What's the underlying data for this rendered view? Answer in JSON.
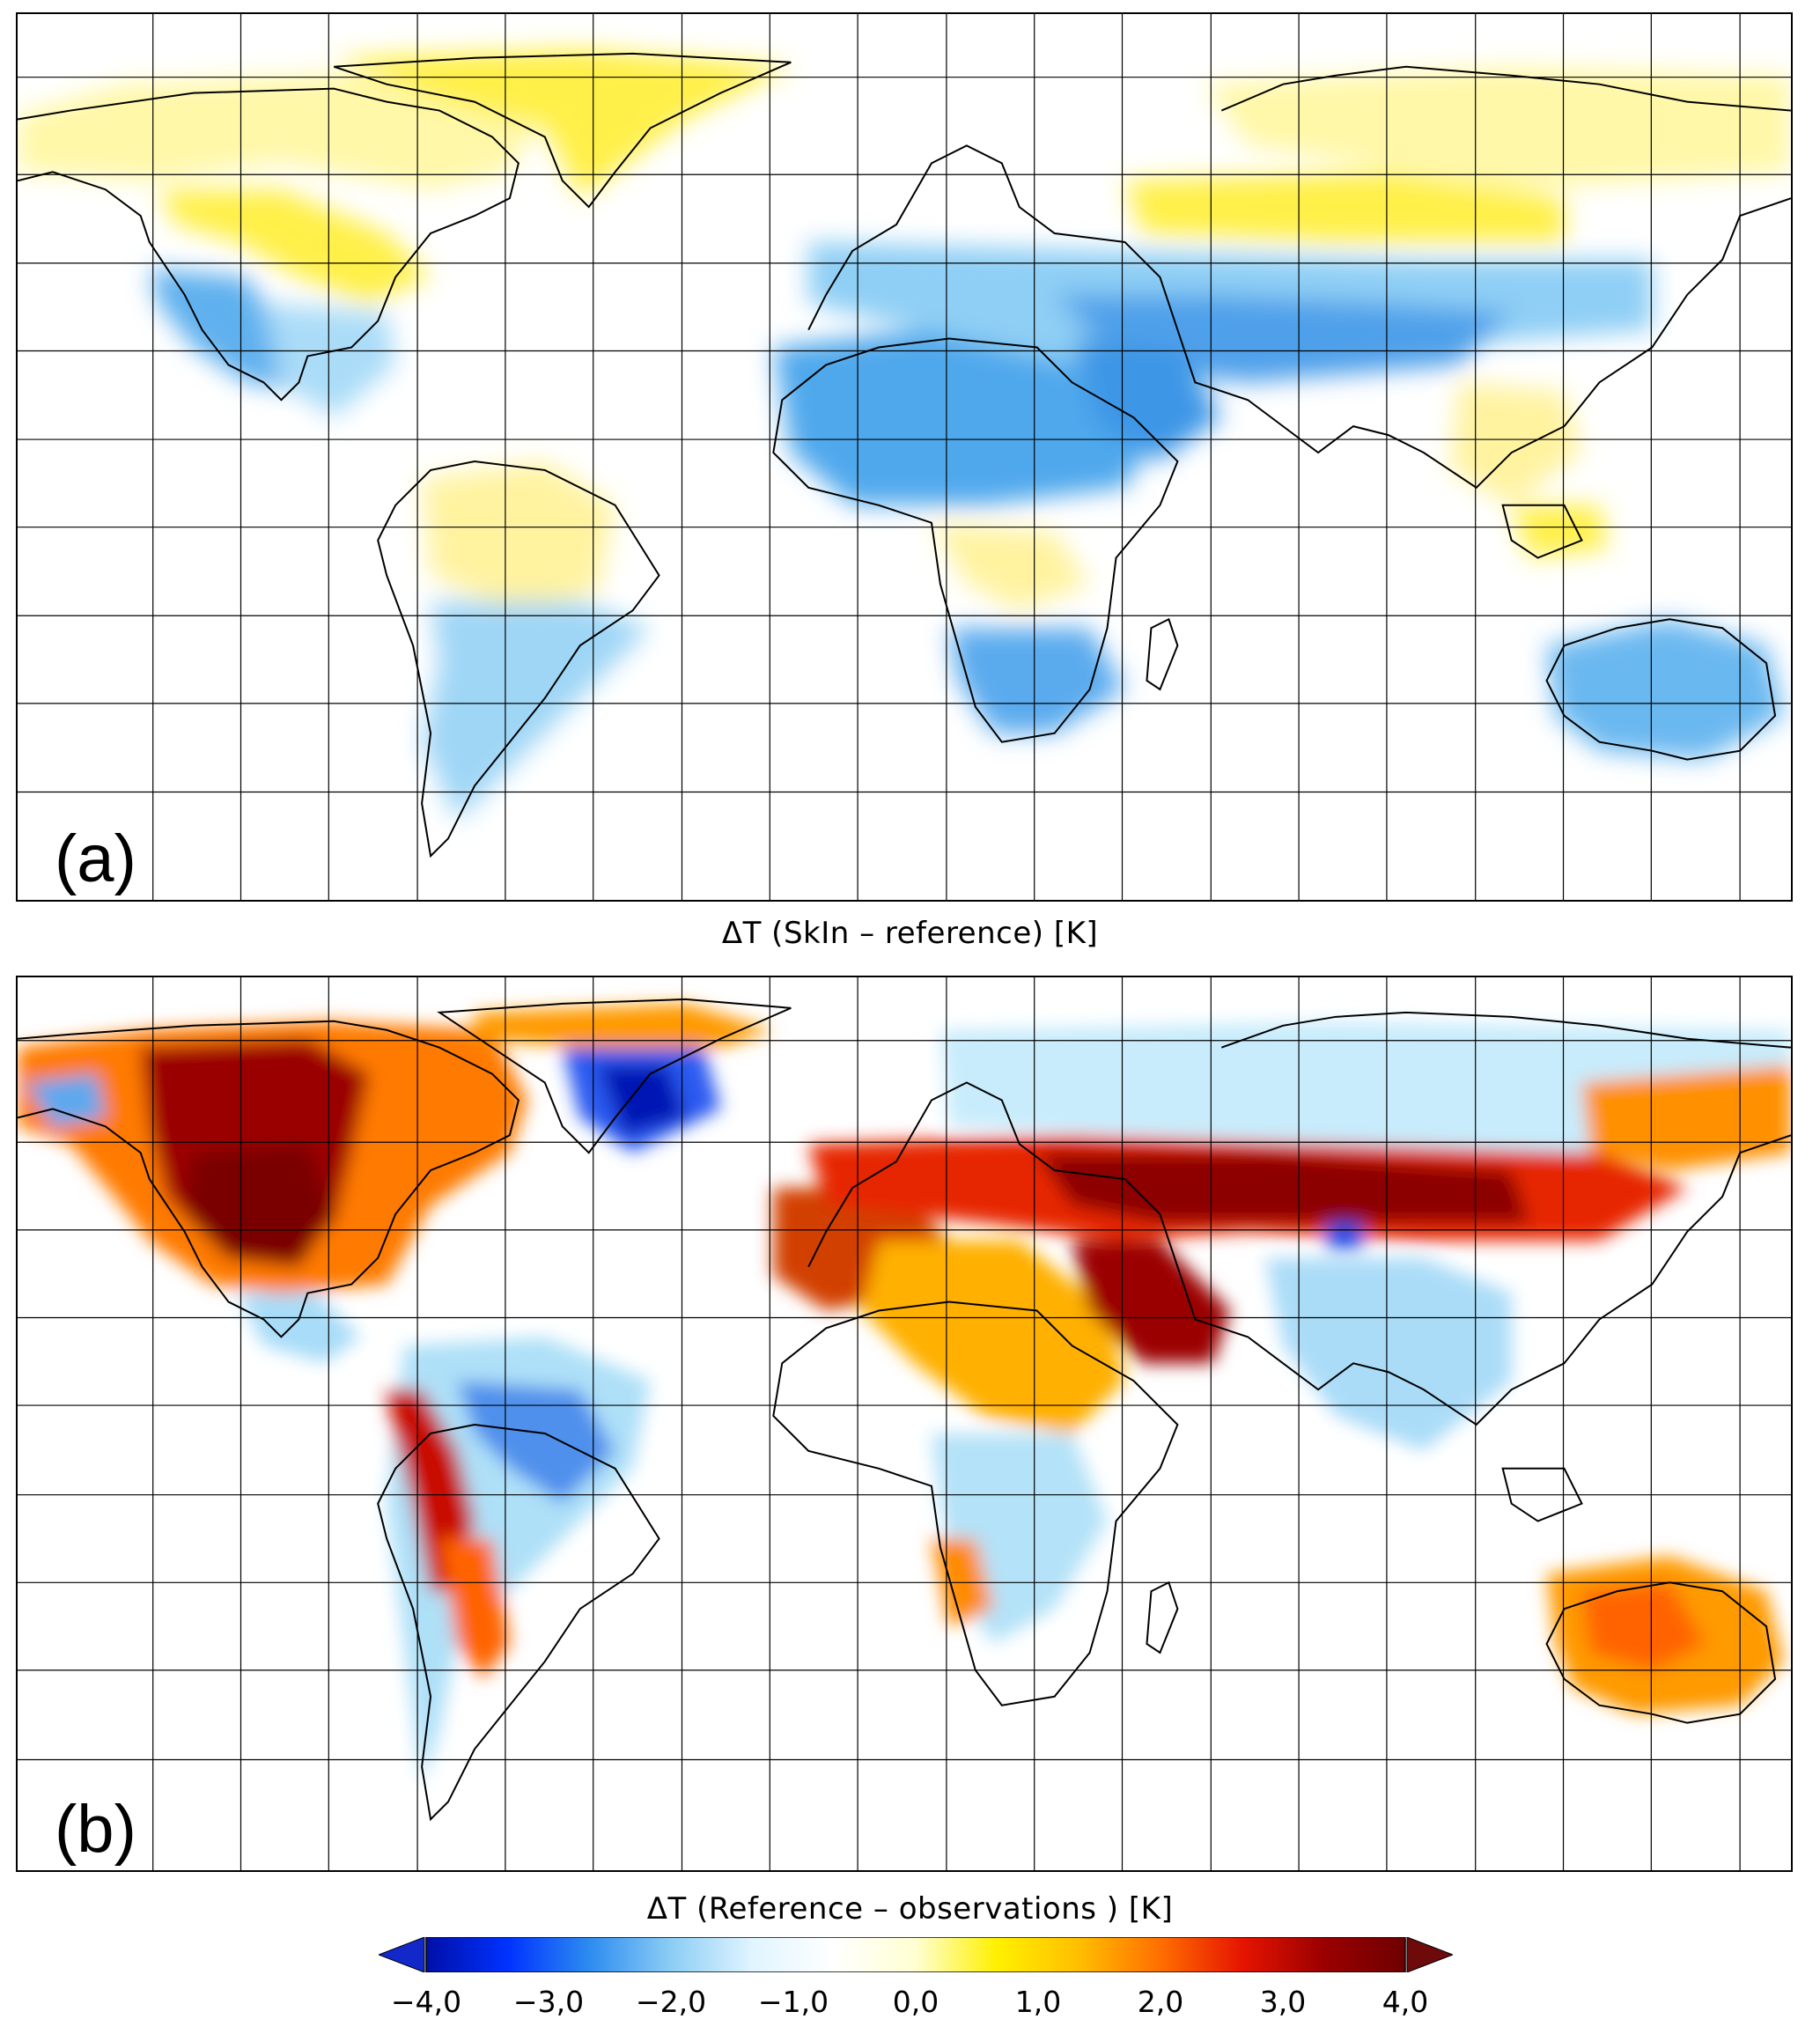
{
  "panels": [
    {
      "label": "(a)",
      "title": "ΔT (SkIn – reference) [K]"
    },
    {
      "label": "(b)",
      "title": "ΔT (Reference – observations ) [K]"
    }
  ],
  "colorbar": {
    "min": -4.0,
    "max": 4.0,
    "extend": "both",
    "ticks": [
      "−4,0",
      "−3,0",
      "−2,0",
      "−1,0",
      "0,0",
      "1,0",
      "2,0",
      "3,0",
      "4,0"
    ],
    "colors": [
      "#000fa8",
      "#0032ff",
      "#2d8cf0",
      "#8ccdf5",
      "#e1f5ff",
      "#ffffff",
      "#ffffd2",
      "#fff000",
      "#ffbe00",
      "#ff6e00",
      "#e61400",
      "#9b0000",
      "#6e0000"
    ],
    "low_arrow_color": "#1228c8",
    "high_arrow_color": "#6e0a0a"
  },
  "map": {
    "projection": "equirectangular",
    "gridlines": true
  }
}
